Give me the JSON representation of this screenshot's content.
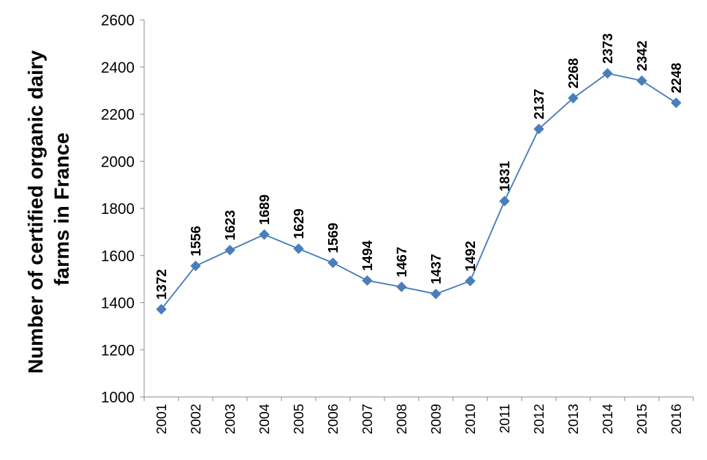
{
  "chart_data": {
    "type": "line",
    "xlabel": "",
    "ylabel_lines": [
      "Number of certified organic dairy",
      "farms in France"
    ],
    "ylim": [
      1000,
      2600
    ],
    "yticks": [
      1000,
      1200,
      1400,
      1600,
      1800,
      2000,
      2200,
      2400,
      2600
    ],
    "grid": false,
    "legend": "none",
    "categories": [
      "2001",
      "2002",
      "2003",
      "2004",
      "2005",
      "2006",
      "2007",
      "2008",
      "2009",
      "2010",
      "2011",
      "2012",
      "2013",
      "2014",
      "2015",
      "2016"
    ],
    "series": [
      {
        "values": [
          1372,
          1556,
          1623,
          1689,
          1629,
          1569,
          1494,
          1467,
          1437,
          1492,
          1831,
          2137,
          2268,
          2373,
          2342,
          2248
        ],
        "color": "#4a7ebb",
        "marker": "diamond"
      }
    ]
  }
}
